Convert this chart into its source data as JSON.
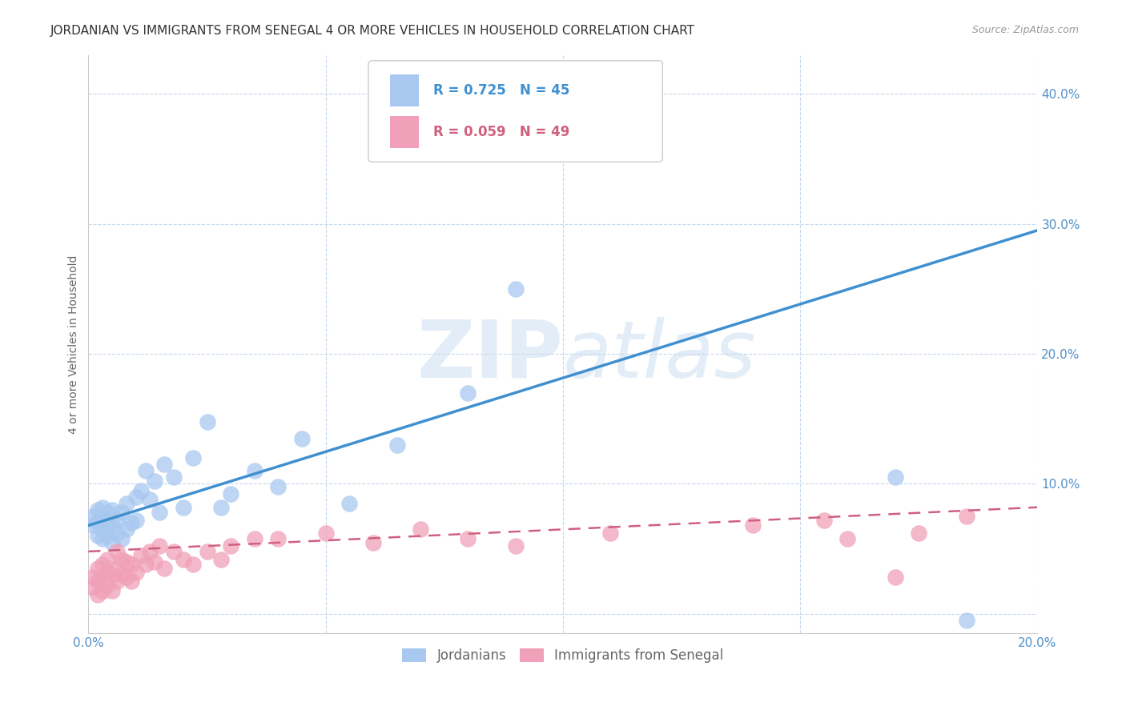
{
  "title": "JORDANIAN VS IMMIGRANTS FROM SENEGAL 4 OR MORE VEHICLES IN HOUSEHOLD CORRELATION CHART",
  "source": "Source: ZipAtlas.com",
  "ylabel": "4 or more Vehicles in Household",
  "xlim": [
    0.0,
    0.2
  ],
  "ylim": [
    -0.015,
    0.43
  ],
  "yticks": [
    0.0,
    0.1,
    0.2,
    0.3,
    0.4
  ],
  "xticks": [
    0.0,
    0.05,
    0.1,
    0.15,
    0.2
  ],
  "xtick_labels": [
    "0.0%",
    "",
    "",
    "",
    "20.0%"
  ],
  "ytick_labels": [
    "",
    "10.0%",
    "20.0%",
    "30.0%",
    "40.0%"
  ],
  "legend_labels": [
    "Jordanians",
    "Immigrants from Senegal"
  ],
  "blue_R": "R = 0.725",
  "blue_N": "N = 45",
  "pink_R": "R = 0.059",
  "pink_N": "N = 49",
  "blue_color": "#A8C8F0",
  "pink_color": "#F0A0B8",
  "blue_line_color": "#4090D0",
  "pink_line_color": "#D06080",
  "blue_tick_color": "#5090C8",
  "watermark_color": "#C8DCF0",
  "blue_scatter_x": [
    0.001,
    0.001,
    0.002,
    0.002,
    0.002,
    0.003,
    0.003,
    0.003,
    0.003,
    0.004,
    0.004,
    0.004,
    0.005,
    0.005,
    0.005,
    0.006,
    0.006,
    0.007,
    0.007,
    0.008,
    0.008,
    0.009,
    0.01,
    0.01,
    0.011,
    0.012,
    0.013,
    0.014,
    0.015,
    0.016,
    0.018,
    0.02,
    0.022,
    0.025,
    0.028,
    0.03,
    0.035,
    0.04,
    0.045,
    0.055,
    0.065,
    0.08,
    0.09,
    0.17,
    0.185
  ],
  "blue_scatter_y": [
    0.068,
    0.075,
    0.06,
    0.07,
    0.08,
    0.058,
    0.065,
    0.075,
    0.082,
    0.06,
    0.07,
    0.078,
    0.055,
    0.068,
    0.08,
    0.062,
    0.072,
    0.058,
    0.078,
    0.065,
    0.085,
    0.07,
    0.072,
    0.09,
    0.095,
    0.11,
    0.088,
    0.102,
    0.078,
    0.115,
    0.105,
    0.082,
    0.12,
    0.148,
    0.082,
    0.092,
    0.11,
    0.098,
    0.135,
    0.085,
    0.13,
    0.17,
    0.25,
    0.105,
    -0.005
  ],
  "pink_scatter_x": [
    0.001,
    0.001,
    0.002,
    0.002,
    0.002,
    0.003,
    0.003,
    0.003,
    0.004,
    0.004,
    0.004,
    0.005,
    0.005,
    0.006,
    0.006,
    0.006,
    0.007,
    0.007,
    0.008,
    0.008,
    0.009,
    0.009,
    0.01,
    0.011,
    0.012,
    0.013,
    0.014,
    0.015,
    0.016,
    0.018,
    0.02,
    0.022,
    0.025,
    0.028,
    0.03,
    0.035,
    0.04,
    0.05,
    0.06,
    0.07,
    0.08,
    0.09,
    0.11,
    0.14,
    0.155,
    0.16,
    0.17,
    0.175,
    0.185
  ],
  "pink_scatter_y": [
    0.02,
    0.028,
    0.015,
    0.025,
    0.035,
    0.018,
    0.028,
    0.038,
    0.022,
    0.032,
    0.042,
    0.018,
    0.03,
    0.025,
    0.035,
    0.048,
    0.03,
    0.042,
    0.028,
    0.04,
    0.025,
    0.038,
    0.032,
    0.045,
    0.038,
    0.048,
    0.04,
    0.052,
    0.035,
    0.048,
    0.042,
    0.038,
    0.048,
    0.042,
    0.052,
    0.058,
    0.058,
    0.062,
    0.055,
    0.065,
    0.058,
    0.052,
    0.062,
    0.068,
    0.072,
    0.058,
    0.028,
    0.062,
    0.075
  ],
  "blue_line_x": [
    0.0,
    0.2
  ],
  "blue_line_y": [
    0.068,
    0.295
  ],
  "pink_line_x": [
    0.0,
    0.2
  ],
  "pink_line_y": [
    0.048,
    0.082
  ],
  "background_color": "#FFFFFF",
  "title_fontsize": 11,
  "axis_label_fontsize": 10,
  "tick_fontsize": 11,
  "legend_fontsize": 12
}
